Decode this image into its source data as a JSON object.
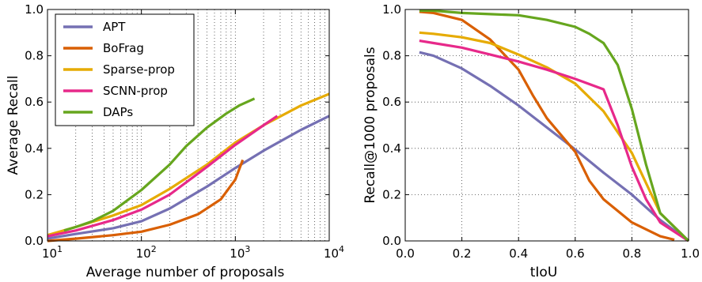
{
  "chart_data": [
    {
      "type": "line",
      "xlabel": "Average number of proposals",
      "ylabel": "Average Recall",
      "xscale": "log",
      "xlim": [
        10,
        10000
      ],
      "ylim": [
        0.0,
        1.0
      ],
      "xticks": [
        {
          "base": "10",
          "exp": "1"
        },
        {
          "base": "10",
          "exp": "2"
        },
        {
          "base": "10",
          "exp": "3"
        },
        {
          "base": "10",
          "exp": "4"
        }
      ],
      "yticks": [
        "0.0",
        "0.2",
        "0.4",
        "0.6",
        "0.8",
        "1.0"
      ],
      "grid": "dotted, vertical minor lines",
      "legend_position": "top-left",
      "series": [
        {
          "name": "APT",
          "color": "#7570b3",
          "points": [
            [
              10,
              0.01
            ],
            [
              20,
              0.03
            ],
            [
              50,
              0.055
            ],
            [
              100,
              0.085
            ],
            [
              200,
              0.14
            ],
            [
              500,
              0.235
            ],
            [
              1000,
              0.315
            ],
            [
              2000,
              0.39
            ],
            [
              5000,
              0.48
            ],
            [
              10000,
              0.54
            ]
          ]
        },
        {
          "name": "BoFrag",
          "color": "#d95f02",
          "points": [
            [
              10,
              0.0
            ],
            [
              20,
              0.01
            ],
            [
              50,
              0.025
            ],
            [
              100,
              0.04
            ],
            [
              200,
              0.07
            ],
            [
              400,
              0.115
            ],
            [
              700,
              0.18
            ],
            [
              1000,
              0.265
            ],
            [
              1200,
              0.35
            ]
          ]
        },
        {
          "name": "Sparse-prop",
          "color": "#e6ab02",
          "points": [
            [
              10,
              0.025
            ],
            [
              20,
              0.06
            ],
            [
              50,
              0.11
            ],
            [
              100,
              0.155
            ],
            [
              200,
              0.225
            ],
            [
              500,
              0.33
            ],
            [
              1000,
              0.425
            ],
            [
              2000,
              0.5
            ],
            [
              5000,
              0.585
            ],
            [
              10000,
              0.635
            ]
          ]
        },
        {
          "name": "SCNN-prop",
          "color": "#e7298a",
          "points": [
            [
              10,
              0.02
            ],
            [
              20,
              0.045
            ],
            [
              50,
              0.09
            ],
            [
              100,
              0.135
            ],
            [
              200,
              0.2
            ],
            [
              500,
              0.32
            ],
            [
              1000,
              0.415
            ],
            [
              2000,
              0.5
            ],
            [
              2800,
              0.54
            ]
          ]
        },
        {
          "name": "DAPs",
          "color": "#66a61e",
          "points": [
            [
              15,
              0.045
            ],
            [
              20,
              0.06
            ],
            [
              30,
              0.085
            ],
            [
              50,
              0.13
            ],
            [
              100,
              0.22
            ],
            [
              200,
              0.33
            ],
            [
              300,
              0.41
            ],
            [
              500,
              0.49
            ],
            [
              800,
              0.55
            ],
            [
              1100,
              0.585
            ],
            [
              1600,
              0.615
            ]
          ]
        }
      ]
    },
    {
      "type": "line",
      "xlabel": "tIoU",
      "ylabel": "Recall@1000 proposals",
      "xlim": [
        0.0,
        1.0
      ],
      "ylim": [
        0.0,
        1.0
      ],
      "xticks": [
        "0.0",
        "0.2",
        "0.4",
        "0.6",
        "0.8",
        "1.0"
      ],
      "yticks": [
        "0.0",
        "0.2",
        "0.4",
        "0.6",
        "0.8",
        "1.0"
      ],
      "grid": "dotted",
      "series": [
        {
          "name": "APT",
          "color": "#7570b3",
          "points": [
            [
              0.05,
              0.815
            ],
            [
              0.1,
              0.8
            ],
            [
              0.2,
              0.745
            ],
            [
              0.3,
              0.67
            ],
            [
              0.4,
              0.585
            ],
            [
              0.5,
              0.49
            ],
            [
              0.6,
              0.395
            ],
            [
              0.7,
              0.295
            ],
            [
              0.8,
              0.2
            ],
            [
              0.9,
              0.09
            ],
            [
              1.0,
              0.0
            ]
          ]
        },
        {
          "name": "BoFrag",
          "color": "#d95f02",
          "points": [
            [
              0.05,
              0.99
            ],
            [
              0.1,
              0.985
            ],
            [
              0.2,
              0.955
            ],
            [
              0.3,
              0.87
            ],
            [
              0.4,
              0.74
            ],
            [
              0.45,
              0.63
            ],
            [
              0.5,
              0.53
            ],
            [
              0.6,
              0.385
            ],
            [
              0.65,
              0.26
            ],
            [
              0.7,
              0.18
            ],
            [
              0.8,
              0.08
            ],
            [
              0.9,
              0.02
            ],
            [
              0.95,
              0.005
            ]
          ]
        },
        {
          "name": "Sparse-prop",
          "color": "#e6ab02",
          "points": [
            [
              0.05,
              0.9
            ],
            [
              0.1,
              0.895
            ],
            [
              0.2,
              0.88
            ],
            [
              0.3,
              0.855
            ],
            [
              0.4,
              0.805
            ],
            [
              0.5,
              0.75
            ],
            [
              0.6,
              0.68
            ],
            [
              0.7,
              0.56
            ],
            [
              0.8,
              0.38
            ],
            [
              0.9,
              0.12
            ],
            [
              1.0,
              0.0
            ]
          ]
        },
        {
          "name": "SCNN-prop",
          "color": "#e7298a",
          "points": [
            [
              0.05,
              0.865
            ],
            [
              0.1,
              0.855
            ],
            [
              0.2,
              0.835
            ],
            [
              0.3,
              0.805
            ],
            [
              0.4,
              0.775
            ],
            [
              0.5,
              0.74
            ],
            [
              0.6,
              0.7
            ],
            [
              0.7,
              0.655
            ],
            [
              0.75,
              0.5
            ],
            [
              0.8,
              0.32
            ],
            [
              0.85,
              0.18
            ],
            [
              0.9,
              0.08
            ],
            [
              1.0,
              0.0
            ]
          ]
        },
        {
          "name": "DAPs",
          "color": "#66a61e",
          "points": [
            [
              0.05,
              0.995
            ],
            [
              0.1,
              0.995
            ],
            [
              0.2,
              0.985
            ],
            [
              0.3,
              0.98
            ],
            [
              0.4,
              0.975
            ],
            [
              0.5,
              0.955
            ],
            [
              0.6,
              0.925
            ],
            [
              0.65,
              0.895
            ],
            [
              0.7,
              0.855
            ],
            [
              0.75,
              0.76
            ],
            [
              0.8,
              0.57
            ],
            [
              0.85,
              0.33
            ],
            [
              0.9,
              0.12
            ],
            [
              1.0,
              0.0
            ]
          ]
        }
      ]
    }
  ]
}
